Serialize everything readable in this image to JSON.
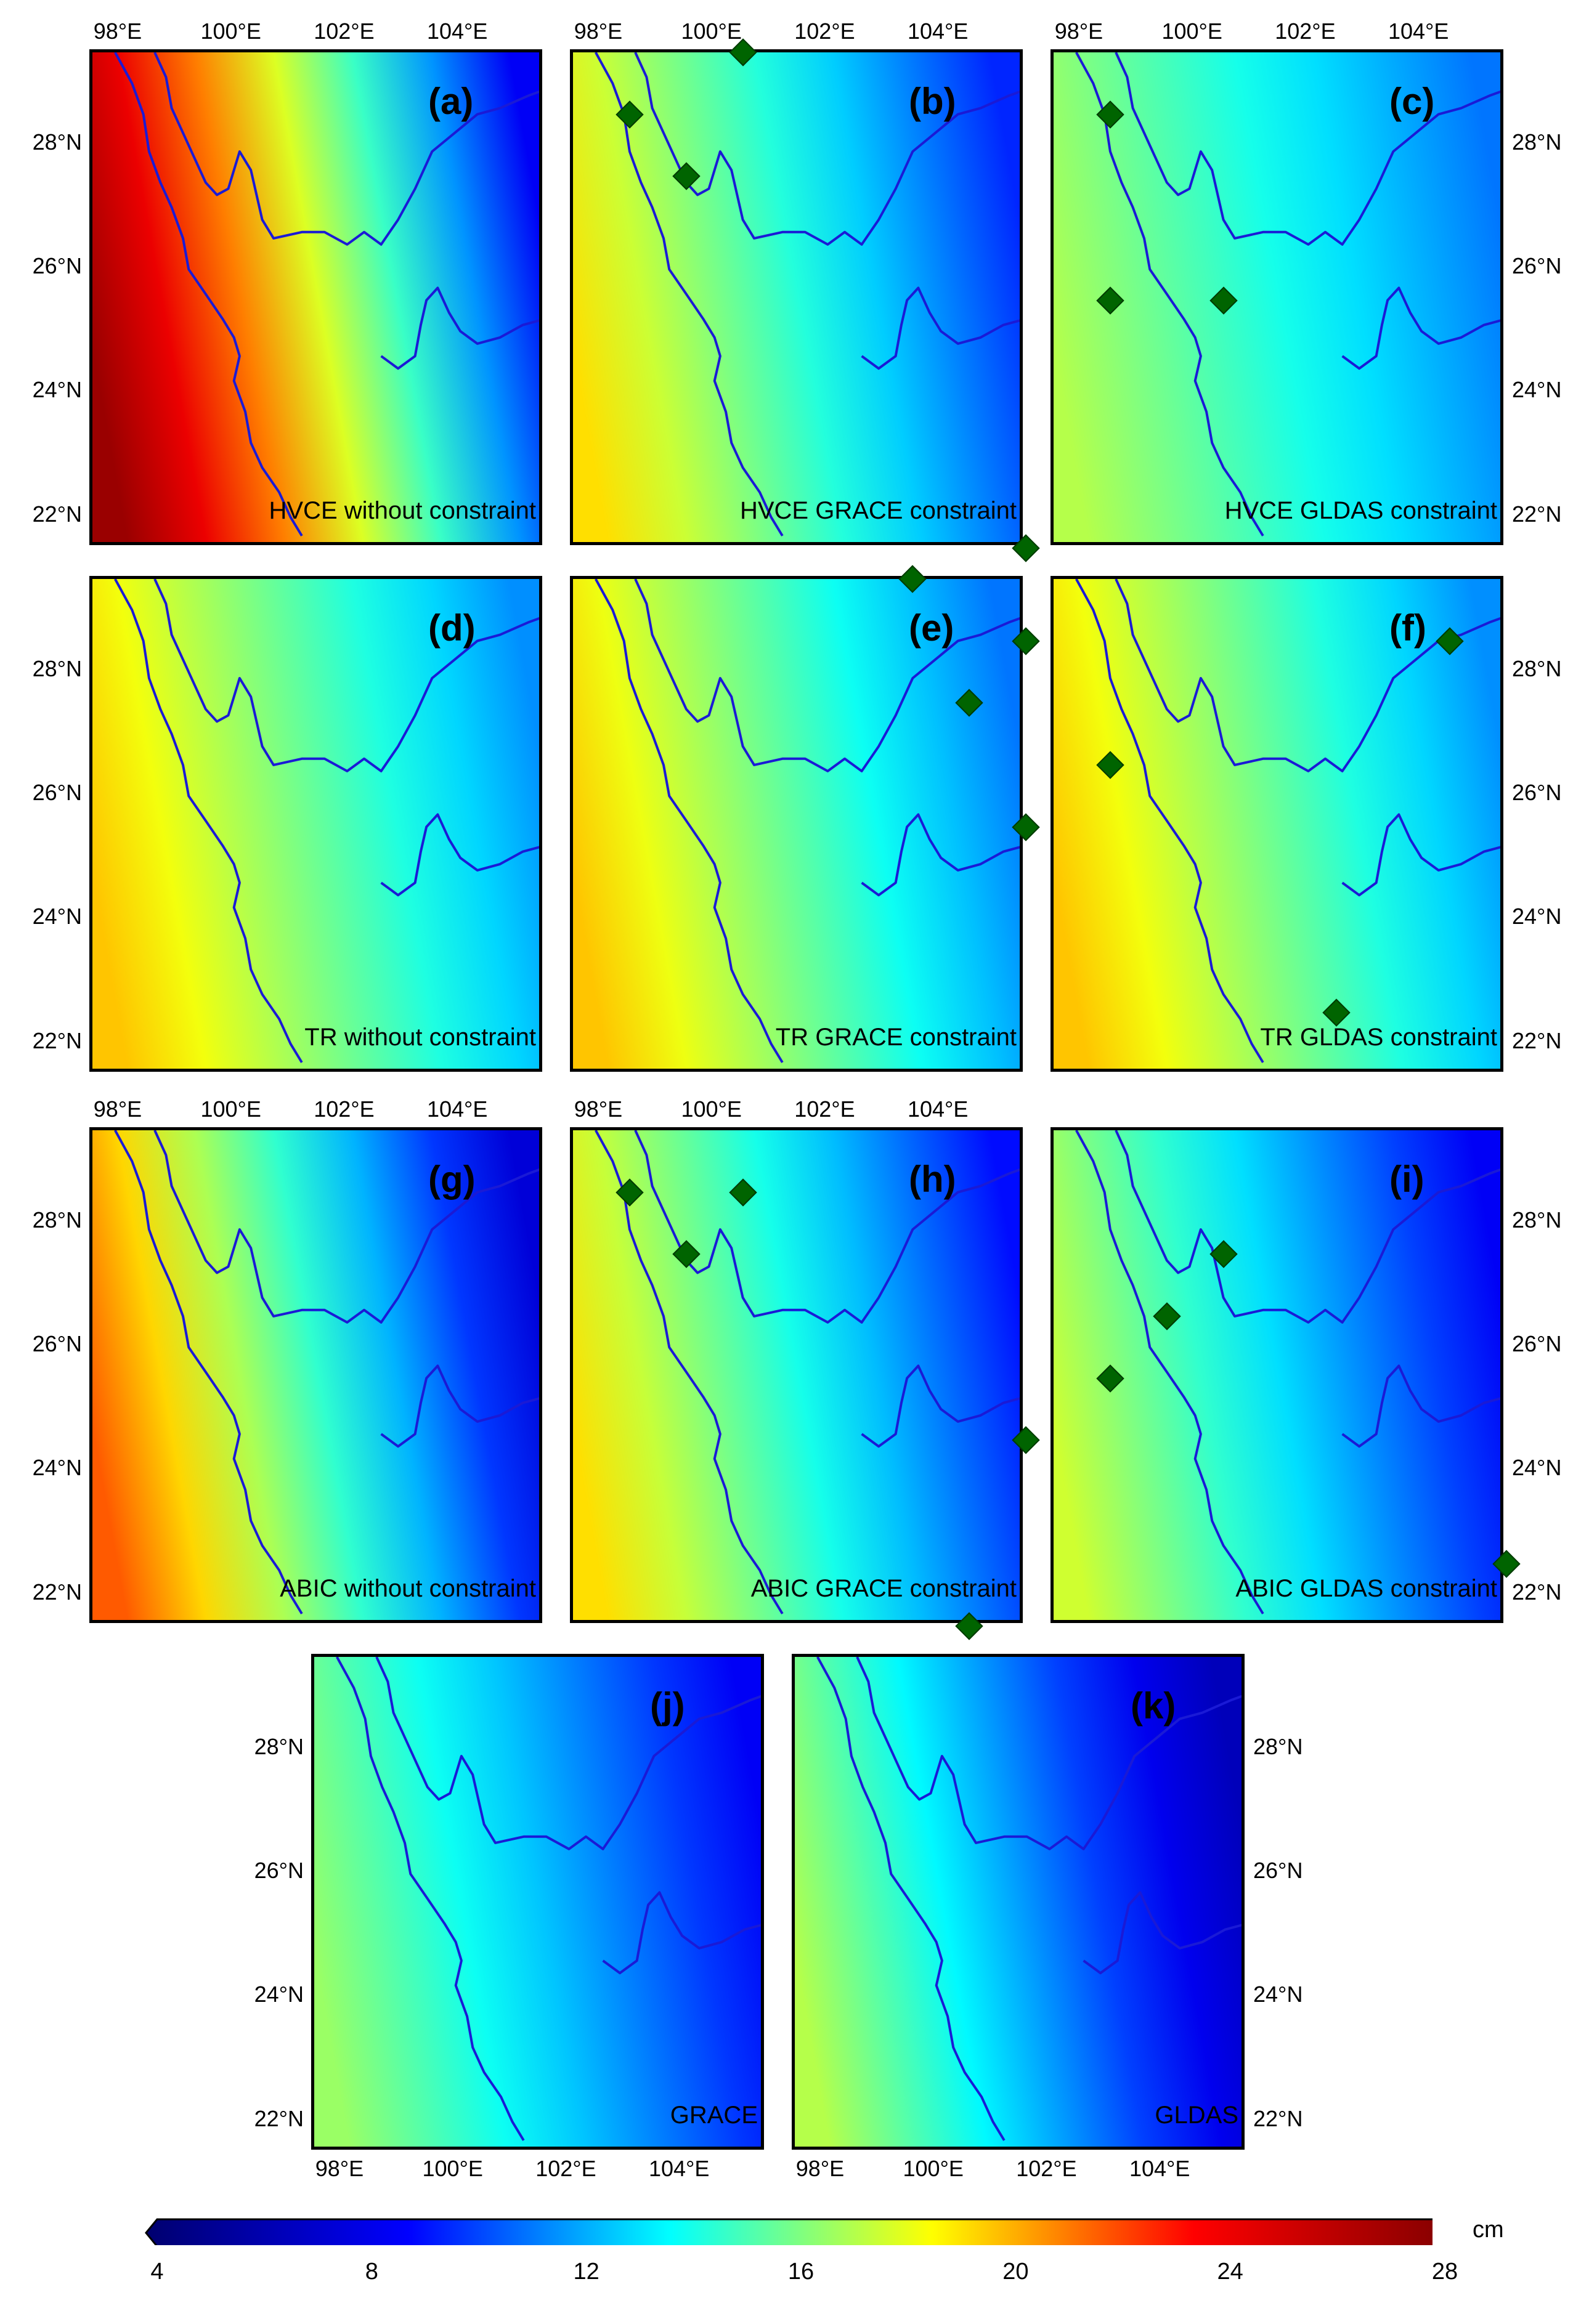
{
  "colorbar": {
    "unit": "cm",
    "ticks": [
      "4",
      "8",
      "12",
      "16",
      "20",
      "24",
      "28"
    ],
    "min": 4,
    "max": 28,
    "stops": [
      "#00006e",
      "#0000ff",
      "#00ffff",
      "#ffff00",
      "#ff0000",
      "#800000"
    ]
  },
  "panels": [
    {
      "letter": "(a)",
      "caption": "HVCE without constraint",
      "lon_ticks": [
        "98°E",
        "100°E",
        "102°E",
        "104°E"
      ],
      "lat_left": [
        "28°N",
        "26°N",
        "24°N",
        "22°N"
      ],
      "lat_right": [],
      "value_west": 27,
      "value_east": 8.5,
      "sites": []
    },
    {
      "letter": "(b)",
      "caption": "HVCE GRACE constraint",
      "lon_ticks": [
        "98°E",
        "100°E",
        "102°E",
        "104°E"
      ],
      "lat_left": [],
      "lat_right": [],
      "value_west": 19,
      "value_east": 9.5,
      "sites": [
        [
          100.5,
          29.5
        ],
        [
          98.5,
          28.5
        ],
        [
          99.5,
          27.5
        ],
        [
          105.5,
          21.5
        ]
      ]
    },
    {
      "letter": "(c)",
      "caption": "HVCE GLDAS constraint",
      "lon_ticks": [
        "98°E",
        "100°E",
        "102°E",
        "104°E"
      ],
      "lat_left": [],
      "lat_right": [
        "28°N",
        "26°N",
        "24°N",
        "22°N"
      ],
      "value_west": 17,
      "value_east": 11,
      "sites": [
        [
          98.5,
          28.5
        ],
        [
          98.5,
          25.5
        ],
        [
          100.5,
          25.5
        ]
      ]
    },
    {
      "letter": "(d)",
      "caption": "TR without constraint",
      "lon_ticks": [],
      "lat_left": [
        "28°N",
        "26°N",
        "24°N",
        "22°N"
      ],
      "lat_right": [],
      "value_west": 19.5,
      "value_east": 11.5,
      "sites": []
    },
    {
      "letter": "(e)",
      "caption": "TR GRACE constraint",
      "lon_ticks": [],
      "lat_left": [],
      "lat_right": [],
      "value_west": 19.5,
      "value_east": 11,
      "sites": [
        [
          103.5,
          29.5
        ],
        [
          105.5,
          28.5
        ],
        [
          104.5,
          27.5
        ],
        [
          105.5,
          25.5
        ]
      ]
    },
    {
      "letter": "(f)",
      "caption": "TR GLDAS constraint",
      "lon_ticks": [],
      "lat_left": [],
      "lat_right": [
        "28°N",
        "26°N",
        "24°N",
        "22°N"
      ],
      "value_west": 19.5,
      "value_east": 11.5,
      "sites": [
        [
          104.5,
          28.5
        ],
        [
          98.5,
          26.5
        ],
        [
          102.5,
          22.5
        ]
      ]
    },
    {
      "letter": "(g)",
      "caption": "ABIC without constraint",
      "lon_ticks": [
        "98°E",
        "100°E",
        "102°E",
        "104°E"
      ],
      "lat_left": [
        "28°N",
        "26°N",
        "24°N",
        "22°N"
      ],
      "lat_right": [],
      "value_west": 21.5,
      "value_east": 7.5,
      "sites": []
    },
    {
      "letter": "(h)",
      "caption": "ABIC GRACE constraint",
      "lon_ticks": [
        "98°E",
        "100°E",
        "102°E",
        "104°E"
      ],
      "lat_left": [],
      "lat_right": [],
      "value_west": 19,
      "value_east": 9,
      "sites": [
        [
          98.5,
          28.5
        ],
        [
          100.5,
          28.5
        ],
        [
          99.5,
          27.5
        ],
        [
          105.5,
          24.5
        ],
        [
          104.5,
          21.5
        ]
      ]
    },
    {
      "letter": "(i)",
      "caption": "ABIC GLDAS constraint",
      "lon_ticks": [],
      "lat_left": [],
      "lat_right": [
        "28°N",
        "26°N",
        "24°N",
        "22°N"
      ],
      "value_west": 17.5,
      "value_east": 8.5,
      "sites": [
        [
          100.5,
          27.5
        ],
        [
          99.5,
          26.5
        ],
        [
          98.5,
          25.5
        ],
        [
          105.5,
          22.5
        ]
      ]
    },
    {
      "letter": "(j)",
      "caption": "GRACE",
      "lon_ticks": [
        "98°E",
        "100°E",
        "102°E",
        "104°E"
      ],
      "lat_left": [
        "28°N",
        "26°N",
        "24°N",
        "22°N"
      ],
      "lat_right": [],
      "value_west": 16.5,
      "value_east": 8.5,
      "sites": []
    },
    {
      "letter": "(k)",
      "caption": "GLDAS",
      "lon_ticks": [
        "98°E",
        "100°E",
        "102°E",
        "104°E"
      ],
      "lat_left": [],
      "lat_right": [
        "28°N",
        "26°N",
        "24°N",
        "22°N"
      ],
      "value_west": 17,
      "value_east": 6.5,
      "sites": []
    }
  ]
}
